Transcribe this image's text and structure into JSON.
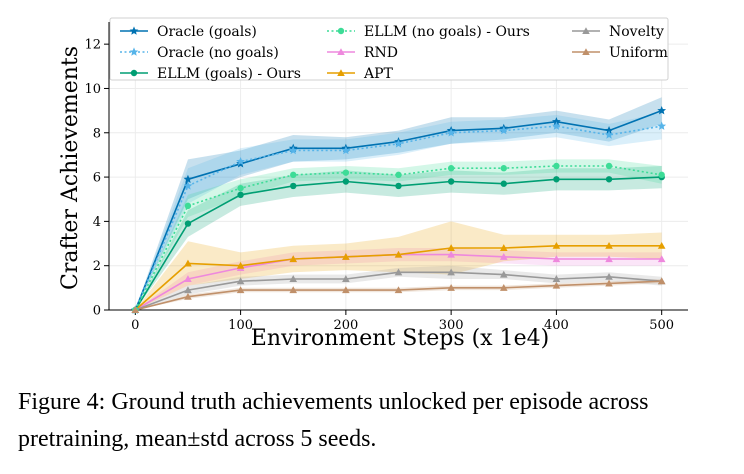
{
  "chart_data": {
    "type": "line",
    "title": "",
    "xlabel": "Environment Steps (x 1e4)",
    "ylabel": "Crafter Achievements",
    "xlim": [
      -25,
      525
    ],
    "ylim": [
      0,
      13
    ],
    "xticks": [
      0,
      100,
      200,
      300,
      400,
      500
    ],
    "yticks": [
      0,
      2,
      4,
      6,
      8,
      10,
      12
    ],
    "grid": true,
    "legend_position": "top",
    "x": [
      0,
      50,
      100,
      150,
      200,
      250,
      300,
      350,
      400,
      450,
      500
    ],
    "series": [
      {
        "name": "Oracle (goals)",
        "color": "#0072B2",
        "marker": "star",
        "dash": "solid",
        "values": [
          0,
          5.9,
          6.6,
          7.3,
          7.3,
          7.6,
          8.1,
          8.2,
          8.5,
          8.1,
          9.0
        ],
        "std": [
          0,
          0.9,
          0.6,
          0.6,
          0.5,
          0.5,
          0.6,
          0.5,
          0.5,
          0.5,
          0.6
        ]
      },
      {
        "name": "Oracle (no goals)",
        "color": "#56B4E9",
        "marker": "star",
        "dash": "dotted",
        "values": [
          0,
          5.6,
          6.7,
          7.2,
          7.2,
          7.5,
          8.0,
          8.1,
          8.3,
          7.9,
          8.3
        ],
        "std": [
          0,
          0.8,
          0.6,
          0.5,
          0.5,
          0.5,
          0.5,
          0.5,
          0.5,
          0.5,
          0.6
        ]
      },
      {
        "name": "ELLM (goals) - Ours",
        "color": "#009E73",
        "marker": "circle",
        "dash": "solid",
        "values": [
          0,
          3.9,
          5.2,
          5.6,
          5.8,
          5.6,
          5.8,
          5.7,
          5.9,
          5.9,
          6.0
        ],
        "std": [
          0,
          0.6,
          0.5,
          0.5,
          0.5,
          0.5,
          0.5,
          0.5,
          0.5,
          0.5,
          0.5
        ]
      },
      {
        "name": "ELLM (no goals) - Ours",
        "color": "#3DDC97",
        "marker": "circle",
        "dash": "dotted",
        "values": [
          0,
          4.7,
          5.5,
          6.1,
          6.2,
          6.1,
          6.4,
          6.4,
          6.5,
          6.5,
          6.1
        ],
        "std": [
          0,
          0.5,
          0.4,
          0.3,
          0.3,
          0.3,
          0.3,
          0.3,
          0.3,
          0.3,
          0.4
        ]
      },
      {
        "name": "RND",
        "color": "#EE88DD",
        "marker": "triangle",
        "dash": "solid",
        "values": [
          0,
          1.4,
          1.9,
          2.3,
          2.4,
          2.5,
          2.5,
          2.4,
          2.3,
          2.3,
          2.3
        ],
        "std": [
          0,
          0.3,
          0.3,
          0.3,
          0.3,
          0.3,
          0.3,
          0.3,
          0.3,
          0.3,
          0.3
        ]
      },
      {
        "name": "APT",
        "color": "#E69F00",
        "marker": "triangle",
        "dash": "solid",
        "values": [
          0,
          2.1,
          2.0,
          2.3,
          2.4,
          2.5,
          2.8,
          2.8,
          2.9,
          2.9,
          2.9
        ],
        "std": [
          0,
          1.0,
          0.6,
          0.6,
          0.6,
          0.8,
          1.2,
          0.6,
          0.5,
          0.5,
          0.6
        ]
      },
      {
        "name": "Novelty",
        "color": "#999999",
        "marker": "triangle",
        "dash": "solid",
        "values": [
          0,
          0.9,
          1.3,
          1.4,
          1.4,
          1.7,
          1.7,
          1.6,
          1.4,
          1.5,
          1.3
        ],
        "std": [
          0,
          0.2,
          0.2,
          0.2,
          0.2,
          0.2,
          0.3,
          0.2,
          0.2,
          0.2,
          0.2
        ]
      },
      {
        "name": "Uniform",
        "color": "#C0906A",
        "marker": "triangle",
        "dash": "solid",
        "values": [
          0,
          0.6,
          0.9,
          0.9,
          0.9,
          0.9,
          1.0,
          1.0,
          1.1,
          1.2,
          1.3
        ],
        "std": [
          0,
          0.1,
          0.1,
          0.1,
          0.1,
          0.1,
          0.1,
          0.1,
          0.1,
          0.1,
          0.1
        ]
      }
    ]
  },
  "caption": {
    "text": "Figure 4: Ground truth achievements unlocked per episode across pretraining, mean±std across 5 seeds."
  }
}
